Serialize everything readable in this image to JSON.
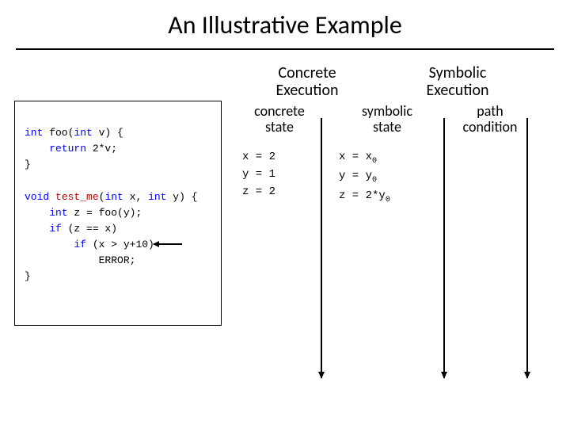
{
  "title": "An Illustrative Example",
  "code": {
    "l1a": "int",
    "l1b": " foo(",
    "l1c": "int",
    "l1d": " v) {",
    "l2a": "    ",
    "l2b": "return",
    "l2c": " 2*v;",
    "l3": "}",
    "blank": "",
    "l4a": "void",
    "l4b": " ",
    "l4fn": "test_me",
    "l4c": "(",
    "l4d": "int",
    "l4e": " x, ",
    "l4f": "int",
    "l4g": " y) {",
    "l5a": "    ",
    "l5b": "int",
    "l5c": " z = foo(y);",
    "l6a": "    ",
    "l6b": "if",
    "l6c": " (z == x)",
    "l7a": "        ",
    "l7b": "if",
    "l7c": " (x > y+10)",
    "l8a": "            ERROR;",
    "l9": "}"
  },
  "heads": {
    "concrete_l1": "Concrete",
    "concrete_l2": "Execution",
    "symbolic_l1": "Symbolic",
    "symbolic_l2": "Execution"
  },
  "subs": {
    "conc_l1": "concrete",
    "conc_l2": "state",
    "symb_l1": "symbolic",
    "symb_l2": "state",
    "path_l1": "path",
    "path_l2": "condition"
  },
  "concrete_state": {
    "r1": "x = 2",
    "r2": "y = 1",
    "r3": "z = 2"
  },
  "symbolic_state": {
    "r1a": "x = x",
    "r1sub": "0",
    "r2a": "y = y",
    "r2sub": "0",
    "r3a": "z = 2*y",
    "r3sub": "0"
  },
  "style": {
    "bg": "#ffffff",
    "text": "#000000",
    "keyword_color": "#0000ff",
    "fn_color": "#c00000",
    "title_fontsize": 32,
    "head_fontsize": 20,
    "subhead_fontsize": 18,
    "code_fontsize": 13,
    "table_fontsize": 14
  }
}
